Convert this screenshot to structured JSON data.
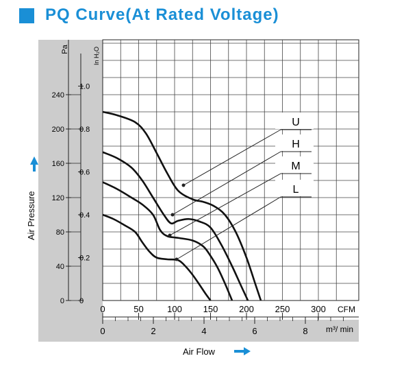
{
  "title": "PQ Curve(At Rated Voltage)",
  "chart_data": {
    "type": "line",
    "title": "PQ Curve(At Rated Voltage)",
    "xlabel": "Air Flow",
    "ylabel": "Air Pressure",
    "x_unit_primary": "CFM",
    "x_unit_secondary": "m³/ min",
    "y_unit_primary": "Pa",
    "y_unit_secondary": "In H₂O",
    "xlim": [
      0,
      350
    ],
    "ylim": [
      0,
      250
    ],
    "x_ticks_cfm": [
      "0",
      "50",
      "100",
      "150",
      "200",
      "250",
      "300"
    ],
    "x_ticks_m3min": [
      "0",
      "2",
      "4",
      "6",
      "8"
    ],
    "y_ticks_pa": [
      "0",
      "40",
      "80",
      "120",
      "160",
      "200",
      "240"
    ],
    "y_ticks_inh2o": [
      "0",
      "0.2",
      "0.4",
      "0.6",
      "0.8",
      "1.0"
    ],
    "grid": true,
    "legend": [
      "U",
      "H",
      "M",
      "L"
    ],
    "series": [
      {
        "name": "U",
        "x": [
          0,
          20,
          45,
          60,
          75,
          90,
          105,
          125,
          140,
          155,
          170,
          185,
          200,
          212,
          220
        ],
        "y": [
          220,
          216,
          208,
          195,
          172,
          148,
          128,
          118,
          115,
          110,
          100,
          80,
          50,
          20,
          0
        ]
      },
      {
        "name": "H",
        "x": [
          0,
          20,
          40,
          55,
          70,
          85,
          95,
          105,
          120,
          135,
          150,
          165,
          180,
          192,
          202
        ],
        "y": [
          173,
          166,
          155,
          140,
          120,
          100,
          90,
          93,
          95,
          92,
          85,
          65,
          40,
          18,
          0
        ]
      },
      {
        "name": "M",
        "x": [
          0,
          20,
          40,
          55,
          70,
          80,
          90,
          105,
          125,
          140,
          150,
          160,
          170,
          180
        ],
        "y": [
          138,
          130,
          120,
          112,
          100,
          82,
          75,
          73,
          70,
          63,
          52,
          38,
          20,
          0
        ]
      },
      {
        "name": "L",
        "x": [
          0,
          15,
          30,
          45,
          55,
          65,
          75,
          90,
          105,
          115,
          125,
          135,
          143,
          150
        ],
        "y": [
          100,
          95,
          88,
          80,
          68,
          57,
          50,
          48,
          47,
          40,
          30,
          18,
          8,
          0
        ]
      }
    ],
    "colors": {
      "line": "#111111",
      "accent": "#1a8fd6",
      "gutter": "#cccccc"
    }
  }
}
